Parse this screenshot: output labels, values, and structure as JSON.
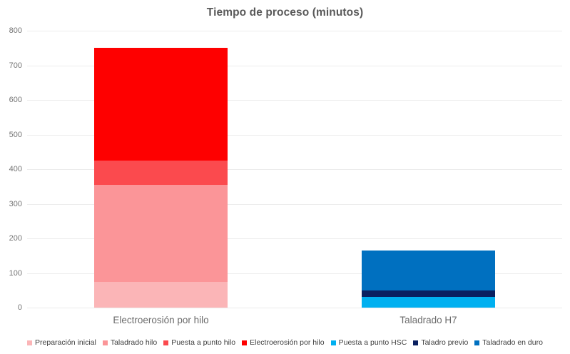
{
  "chart_data": {
    "type": "bar",
    "stacked": true,
    "title": "Tiempo de proceso (minutos)",
    "categories": [
      "Electroerosión por hilo",
      "Taladrado H7"
    ],
    "series": [
      {
        "name": "Preparación inicial",
        "color": "#fbb5b7",
        "values": [
          75,
          0
        ]
      },
      {
        "name": "Taladrado hilo",
        "color": "#fb9598",
        "values": [
          280,
          0
        ]
      },
      {
        "name": "Puesta a punto hilo",
        "color": "#fb4a4e",
        "values": [
          70,
          0
        ]
      },
      {
        "name": "Electroerosión por hilo",
        "color": "#fe0000",
        "values": [
          325,
          0
        ]
      },
      {
        "name": "Puesta a punto HSC",
        "color": "#00b0f0",
        "values": [
          0,
          30
        ]
      },
      {
        "name": "Taladro previo",
        "color": "#0a2060",
        "values": [
          0,
          20
        ]
      },
      {
        "name": "Taladrado en duro",
        "color": "#0070c0",
        "values": [
          0,
          115
        ]
      }
    ],
    "ylim": [
      0,
      800
    ],
    "yticks": [
      0,
      100,
      200,
      300,
      400,
      500,
      600,
      700,
      800
    ],
    "xlabel": "",
    "ylabel": "",
    "grid": true,
    "legend_position": "bottom"
  },
  "colors": {
    "background": "#ffffff",
    "title_text": "#595959",
    "axis_tick_text": "#757575",
    "category_text": "#6b6b6b",
    "legend_text": "#3f3f3f",
    "gridline": "#ececec"
  }
}
